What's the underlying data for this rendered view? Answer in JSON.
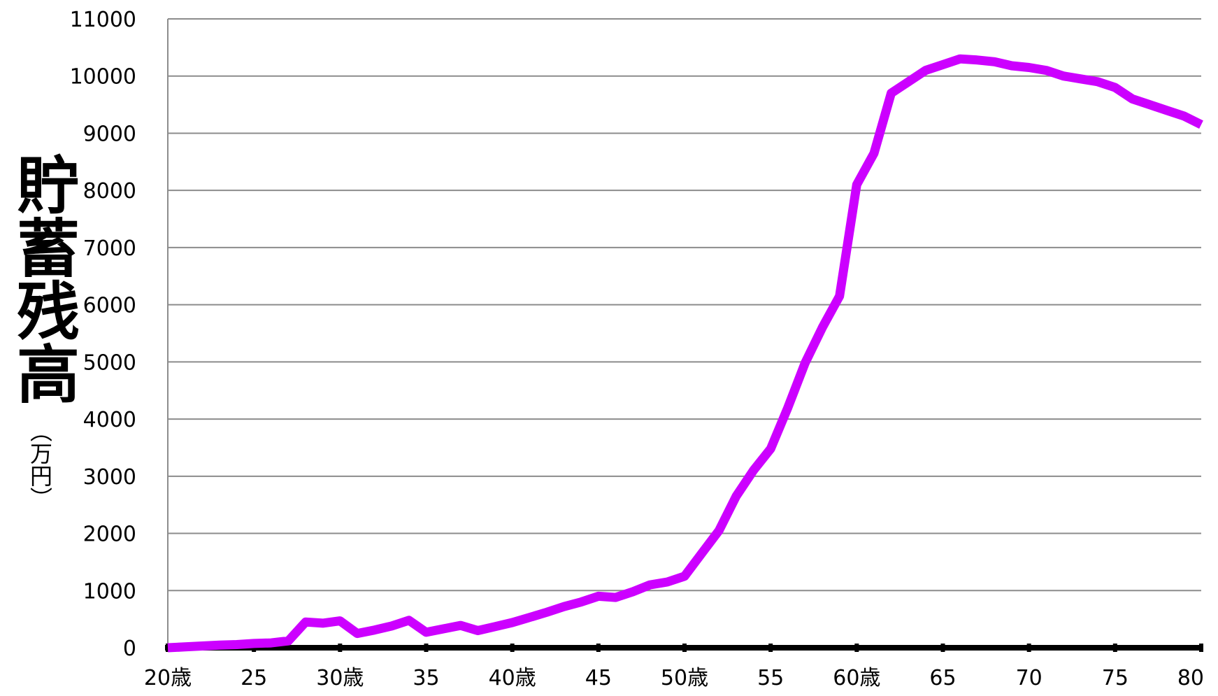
{
  "chart_data": {
    "type": "line",
    "ylabel": "貯蓄残高",
    "yunit": "（万円）",
    "ylim": [
      0,
      11000
    ],
    "ytick_step": 1000,
    "yticks": [
      "0",
      "1000",
      "2000",
      "3000",
      "4000",
      "5000",
      "6000",
      "7000",
      "8000",
      "9000",
      "10000",
      "11000"
    ],
    "xlim": [
      20,
      80
    ],
    "xticks": [
      {
        "value": 20,
        "label": "20歳"
      },
      {
        "value": 25,
        "label": "25"
      },
      {
        "value": 30,
        "label": "30歳"
      },
      {
        "value": 35,
        "label": "35"
      },
      {
        "value": 40,
        "label": "40歳"
      },
      {
        "value": 45,
        "label": "45"
      },
      {
        "value": 50,
        "label": "50歳"
      },
      {
        "value": 55,
        "label": "55"
      },
      {
        "value": 60,
        "label": "60歳"
      },
      {
        "value": 65,
        "label": "65"
      },
      {
        "value": 70,
        "label": "70"
      },
      {
        "value": 75,
        "label": "75"
      },
      {
        "value": 80,
        "label": "80"
      }
    ],
    "grid": true,
    "line_color": "#cc00ff",
    "series": [
      {
        "x": [
          20,
          21,
          22,
          23,
          24,
          25,
          26,
          27,
          28,
          29,
          30,
          31,
          32,
          33,
          34,
          35,
          36,
          37,
          38,
          39,
          40,
          41,
          42,
          43,
          44,
          45,
          46,
          47,
          48,
          49,
          50,
          51,
          52,
          53,
          54,
          55,
          56,
          57,
          58,
          59,
          60,
          61,
          62,
          63,
          64,
          65,
          66,
          67,
          68,
          69,
          70,
          71,
          72,
          73,
          74,
          75,
          76,
          77,
          78,
          79,
          80
        ],
        "y": [
          0,
          15,
          30,
          45,
          55,
          75,
          85,
          120,
          450,
          430,
          470,
          250,
          310,
          380,
          480,
          270,
          330,
          390,
          300,
          370,
          440,
          530,
          620,
          720,
          800,
          900,
          880,
          980,
          1100,
          1150,
          1250,
          1650,
          2050,
          2650,
          3100,
          3480,
          4200,
          4980,
          5600,
          6150,
          8100,
          8650,
          9700,
          9900,
          10100,
          10200,
          10300,
          10280,
          10250,
          10180,
          10150,
          10100,
          10000,
          9950,
          9900,
          9800,
          9600,
          9500,
          9400,
          9300,
          9150
        ]
      }
    ]
  }
}
